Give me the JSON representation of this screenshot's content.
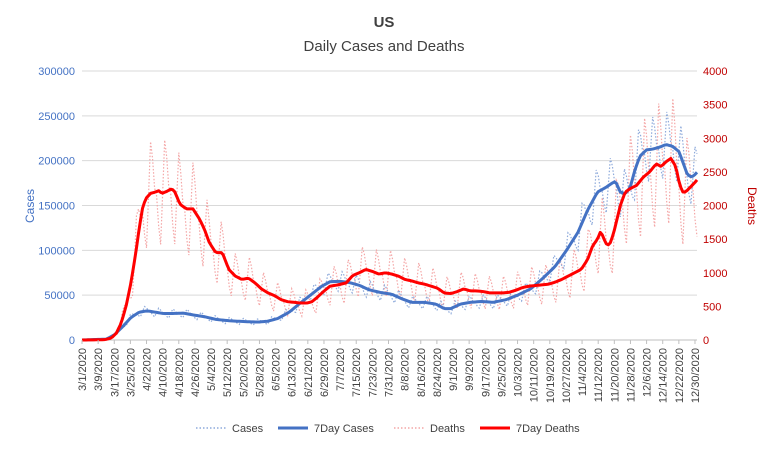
{
  "chart_data": {
    "type": "line",
    "title": "US",
    "subtitle": "Daily Cases and Deaths",
    "ylabel_left": "Cases",
    "ylabel_right": "Deaths",
    "ylim_left": [
      0,
      300000
    ],
    "ylim_right": [
      0,
      4000
    ],
    "yticks_left": [
      "0",
      "50000",
      "100000",
      "150000",
      "200000",
      "250000",
      "300000"
    ],
    "yticks_right": [
      "0",
      "500",
      "1000",
      "1500",
      "2000",
      "2500",
      "3000",
      "3500",
      "4000"
    ],
    "x_start": "3/1/2020",
    "x_end": "12/31/2020",
    "xticks": [
      "3/1/2020",
      "3/9/2020",
      "3/17/2020",
      "3/25/2020",
      "4/2/2020",
      "4/10/2020",
      "4/18/2020",
      "4/26/2020",
      "5/4/2020",
      "5/12/2020",
      "5/20/2020",
      "5/28/2020",
      "6/5/2020",
      "6/13/2020",
      "6/21/2020",
      "6/29/2020",
      "7/7/2020",
      "7/15/2020",
      "7/23/2020",
      "7/31/2020",
      "8/8/2020",
      "8/16/2020",
      "8/24/2020",
      "9/1/2020",
      "9/9/2020",
      "9/17/2020",
      "9/25/2020",
      "10/3/2020",
      "10/11/2020",
      "10/19/2020",
      "10/27/2020",
      "11/4/2020",
      "11/12/2020",
      "11/20/2020",
      "11/28/2020",
      "12/6/2020",
      "12/14/2020",
      "12/22/2020",
      "12/30/2020"
    ],
    "legend": [
      "Cases",
      "7Day Cases",
      "Deaths",
      "7Day Deaths"
    ],
    "legend_position": "bottom",
    "colors": {
      "cases": "#8eaadb",
      "cases_7day": "#4472c4",
      "deaths": "#f4a6a6",
      "deaths_7day": "#ff0000",
      "left_axis_text": "#4472c4",
      "right_axis_text": "#c00000",
      "axis_text": "#404040",
      "grid": "#d9d9d9"
    },
    "series": [
      {
        "name": "7Day Cases",
        "axis": "left",
        "points": [
          [
            0,
            0
          ],
          [
            15,
            1000
          ],
          [
            20,
            6000
          ],
          [
            25,
            15000
          ],
          [
            30,
            25000
          ],
          [
            35,
            31000
          ],
          [
            40,
            32500
          ],
          [
            45,
            31000
          ],
          [
            50,
            29500
          ],
          [
            55,
            29500
          ],
          [
            62,
            30000
          ],
          [
            68,
            28000
          ],
          [
            75,
            26000
          ],
          [
            82,
            23000
          ],
          [
            90,
            21500
          ],
          [
            100,
            20500
          ],
          [
            108,
            20000
          ],
          [
            114,
            21000
          ],
          [
            120,
            24000
          ],
          [
            127,
            31000
          ],
          [
            133,
            40000
          ],
          [
            140,
            50000
          ],
          [
            147,
            60000
          ],
          [
            152,
            65000
          ],
          [
            158,
            65500
          ],
          [
            164,
            64000
          ],
          [
            170,
            61000
          ],
          [
            176,
            56000
          ],
          [
            183,
            53000
          ],
          [
            190,
            51000
          ],
          [
            196,
            46000
          ],
          [
            202,
            42000
          ],
          [
            210,
            42000
          ],
          [
            217,
            40000
          ],
          [
            222,
            35000
          ],
          [
            226,
            35000
          ],
          [
            232,
            40000
          ],
          [
            238,
            42000
          ],
          [
            245,
            43000
          ],
          [
            252,
            42000
          ],
          [
            260,
            45000
          ],
          [
            267,
            50000
          ],
          [
            275,
            57000
          ],
          [
            282,
            68000
          ],
          [
            290,
            82000
          ],
          [
            297,
            100000
          ],
          [
            304,
            120000
          ],
          [
            310,
            145000
          ],
          [
            316,
            165000
          ],
          [
            321,
            170000
          ],
          [
            325,
            175000
          ],
          [
            327,
            177000
          ],
          [
            330,
            165000
          ],
          [
            333,
            163000
          ],
          [
            336,
            170000
          ],
          [
            339,
            190000
          ],
          [
            342,
            205000
          ],
          [
            346,
            212000
          ],
          [
            350,
            213000
          ],
          [
            354,
            215000
          ],
          [
            358,
            218000
          ],
          [
            362,
            216000
          ],
          [
            366,
            210000
          ],
          [
            369,
            195000
          ],
          [
            371,
            185000
          ],
          [
            373,
            182000
          ],
          [
            375,
            183000
          ],
          [
            377,
            187000
          ]
        ]
      },
      {
        "name": "7Day Deaths",
        "axis": "right",
        "points": [
          [
            0,
            0
          ],
          [
            14,
            5
          ],
          [
            18,
            30
          ],
          [
            21,
            100
          ],
          [
            24,
            250
          ],
          [
            27,
            500
          ],
          [
            30,
            850
          ],
          [
            33,
            1300
          ],
          [
            35,
            1650
          ],
          [
            37,
            1950
          ],
          [
            39,
            2100
          ],
          [
            42,
            2180
          ],
          [
            45,
            2200
          ],
          [
            47,
            2220
          ],
          [
            49,
            2180
          ],
          [
            52,
            2210
          ],
          [
            55,
            2250
          ],
          [
            57,
            2200
          ],
          [
            60,
            2020
          ],
          [
            64,
            1950
          ],
          [
            68,
            1950
          ],
          [
            72,
            1800
          ],
          [
            75,
            1650
          ],
          [
            78,
            1450
          ],
          [
            82,
            1300
          ],
          [
            86,
            1300
          ],
          [
            90,
            1050
          ],
          [
            94,
            950
          ],
          [
            98,
            900
          ],
          [
            102,
            920
          ],
          [
            106,
            850
          ],
          [
            110,
            760
          ],
          [
            114,
            700
          ],
          [
            118,
            660
          ],
          [
            122,
            600
          ],
          [
            126,
            570
          ],
          [
            130,
            560
          ],
          [
            134,
            550
          ],
          [
            138,
            550
          ],
          [
            141,
            570
          ],
          [
            144,
            630
          ],
          [
            148,
            720
          ],
          [
            152,
            800
          ],
          [
            157,
            820
          ],
          [
            162,
            850
          ],
          [
            166,
            960
          ],
          [
            170,
            1000
          ],
          [
            174,
            1050
          ],
          [
            178,
            1020
          ],
          [
            182,
            980
          ],
          [
            186,
            1000
          ],
          [
            190,
            980
          ],
          [
            194,
            950
          ],
          [
            198,
            900
          ],
          [
            202,
            880
          ],
          [
            206,
            850
          ],
          [
            210,
            830
          ],
          [
            214,
            800
          ],
          [
            218,
            770
          ],
          [
            222,
            700
          ],
          [
            226,
            690
          ],
          [
            230,
            720
          ],
          [
            234,
            760
          ],
          [
            238,
            730
          ],
          [
            242,
            730
          ],
          [
            246,
            720
          ],
          [
            250,
            700
          ],
          [
            254,
            700
          ],
          [
            258,
            700
          ],
          [
            262,
            710
          ],
          [
            266,
            740
          ],
          [
            270,
            780
          ],
          [
            274,
            800
          ],
          [
            278,
            810
          ],
          [
            282,
            820
          ],
          [
            286,
            830
          ],
          [
            290,
            860
          ],
          [
            294,
            900
          ],
          [
            298,
            950
          ],
          [
            302,
            1000
          ],
          [
            306,
            1050
          ],
          [
            310,
            1200
          ],
          [
            313,
            1400
          ],
          [
            316,
            1500
          ],
          [
            318,
            1620
          ],
          [
            320,
            1500
          ],
          [
            322,
            1400
          ],
          [
            324,
            1450
          ],
          [
            326,
            1600
          ],
          [
            328,
            1800
          ],
          [
            330,
            2000
          ],
          [
            333,
            2200
          ],
          [
            336,
            2250
          ],
          [
            340,
            2300
          ],
          [
            344,
            2420
          ],
          [
            348,
            2500
          ],
          [
            352,
            2620
          ],
          [
            355,
            2580
          ],
          [
            358,
            2650
          ],
          [
            361,
            2700
          ],
          [
            364,
            2580
          ],
          [
            366,
            2350
          ],
          [
            368,
            2200
          ],
          [
            370,
            2200
          ],
          [
            372,
            2250
          ],
          [
            374,
            2300
          ],
          [
            376,
            2350
          ],
          [
            377,
            2380
          ]
        ]
      },
      {
        "name": "Cases",
        "axis": "left",
        "style": "dotted daily raw values with weekly oscillation around 7Day Cases"
      },
      {
        "name": "Deaths",
        "axis": "right",
        "style": "dotted daily raw values with weekly oscillation around 7Day Deaths"
      }
    ]
  }
}
